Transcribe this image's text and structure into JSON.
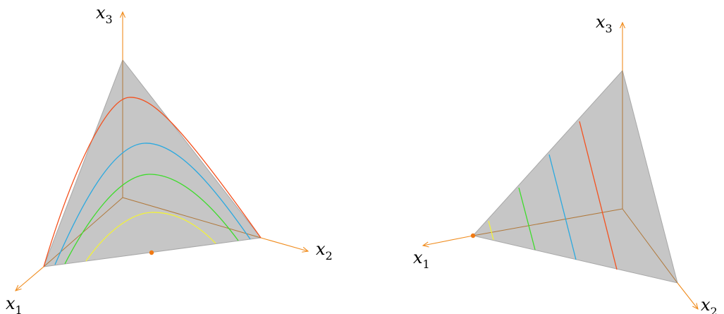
{
  "colors": {
    "simplex_fill": "#c6c6c6",
    "simplex_edge": "#a8a8a8",
    "axis": "#f08c1e",
    "hidden_axis": "#b0783a",
    "point": "#f07a14",
    "curves": [
      "#f4511e",
      "#2aa9e0",
      "#3ddc2a",
      "#f2f23a"
    ]
  },
  "left_panel": {
    "axis_labels": [
      {
        "base": "x",
        "sub": "1"
      },
      {
        "base": "x",
        "sub": "2"
      },
      {
        "base": "x",
        "sub": "3"
      }
    ]
  },
  "right_panel": {
    "axis_labels": [
      {
        "base": "x",
        "sub": "1"
      },
      {
        "base": "x",
        "sub": "2"
      },
      {
        "base": "x",
        "sub": "3"
      }
    ]
  }
}
